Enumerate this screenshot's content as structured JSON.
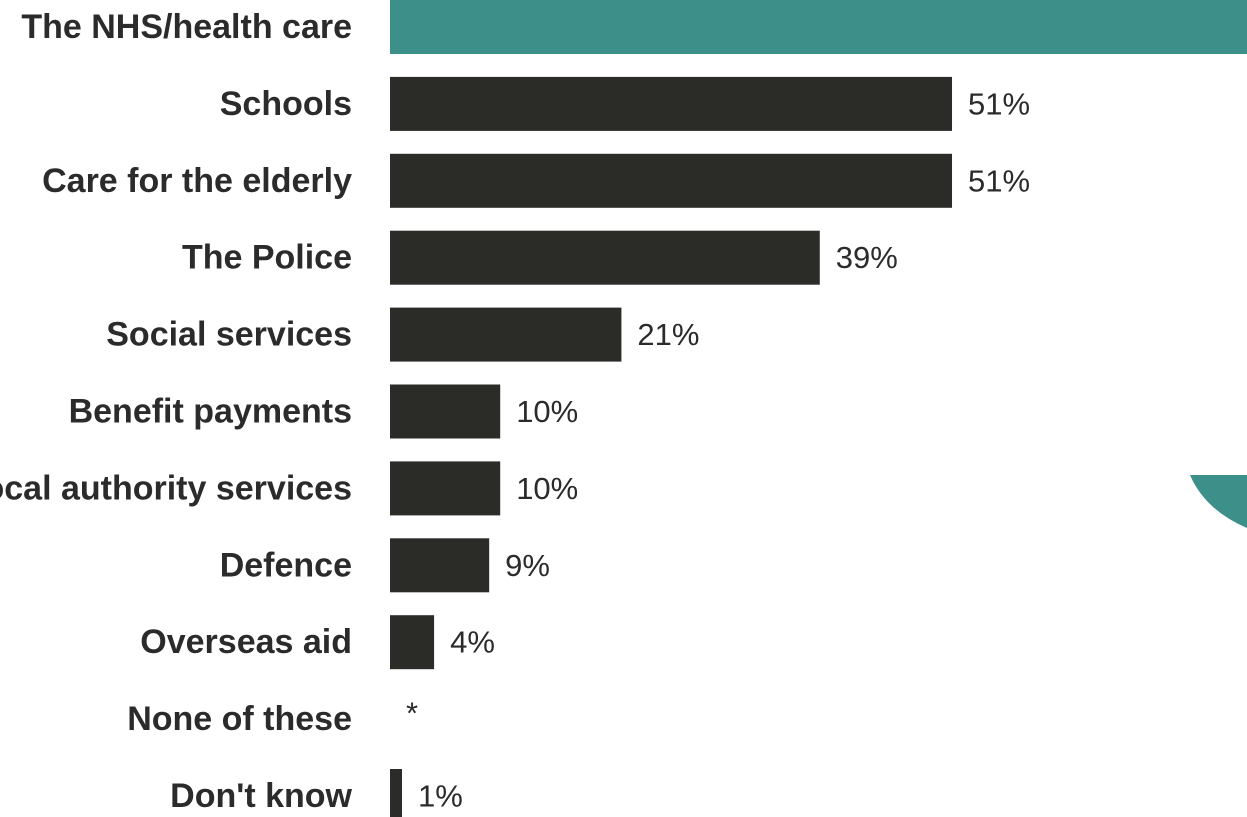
{
  "chart_data": {
    "type": "bar",
    "orientation": "horizontal",
    "categories": [
      "The NHS/health care",
      "Schools",
      "Care for the elderly",
      "The Police",
      "Social services",
      "Benefit payments",
      "Local authority services",
      "Defence",
      "Overseas aid",
      "None of these",
      "Don't know"
    ],
    "values": [
      null,
      51,
      51,
      39,
      21,
      10,
      10,
      9,
      4,
      0,
      1
    ],
    "value_labels": [
      "",
      "51%",
      "51%",
      "39%",
      "21%",
      "10%",
      "10%",
      "9%",
      "4%",
      "*",
      "1%"
    ],
    "unit": "%",
    "title": "",
    "xlabel": "",
    "ylabel": "",
    "grid": false,
    "colors": {
      "highlight": "#3d8f8a",
      "bar": "#2b2b28",
      "text": "#2b2b2b",
      "decoration": "#3d8f8a"
    },
    "highlight_index": 0
  }
}
